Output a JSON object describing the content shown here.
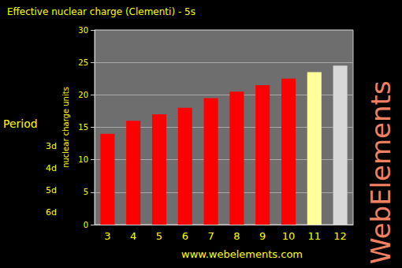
{
  "chart_data": {
    "type": "bar",
    "title": "Effective nuclear charge (Clementi) - 5s",
    "y_label": "nuclear charge units",
    "categories": [
      "3",
      "4",
      "5",
      "6",
      "7",
      "8",
      "9",
      "10",
      "11",
      "12"
    ],
    "values": [
      14,
      16,
      17,
      18,
      19.5,
      20.5,
      21.5,
      22.5,
      23.5,
      24.5
    ],
    "colors": [
      "#ff0000",
      "#ff0000",
      "#ff0000",
      "#ff0000",
      "#ff0000",
      "#ff0000",
      "#ff0000",
      "#ff0000",
      "#ffff99",
      "#d8d8d8"
    ],
    "ylim": [
      0,
      30
    ],
    "yticks": [
      0,
      5,
      10,
      15,
      20,
      25,
      30
    ],
    "grid": true,
    "period_axis": {
      "title": "Period",
      "labels": [
        "3d",
        "4d",
        "5d",
        "6d"
      ]
    },
    "annotations": [
      "www.webelements.com",
      "WebElements"
    ]
  }
}
